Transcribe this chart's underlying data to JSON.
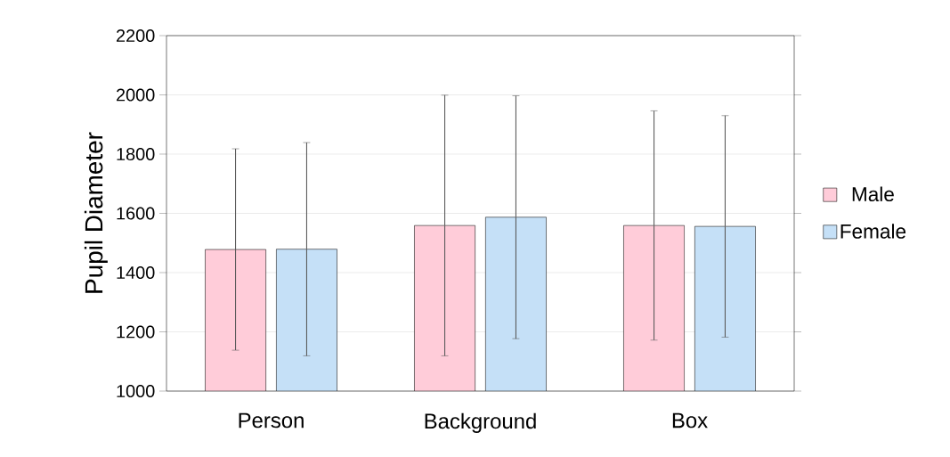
{
  "chart_data": {
    "type": "bar",
    "ylabel": "Pupil Diameter",
    "categories": [
      "Person",
      "Background",
      "Box"
    ],
    "series": [
      {
        "name": "Male",
        "color": "#ffccd9",
        "values": [
          1478,
          1559,
          1559
        ],
        "errors": [
          340,
          440,
          387
        ]
      },
      {
        "name": "Female",
        "color": "#c5e0f7",
        "values": [
          1479,
          1587,
          1556
        ],
        "errors": [
          360,
          410,
          374
        ]
      }
    ],
    "ylim": [
      1000,
      2200
    ],
    "yticks": [
      1000,
      1200,
      1400,
      1600,
      1800,
      2000,
      2200
    ],
    "grid": "y",
    "legend": "right"
  }
}
